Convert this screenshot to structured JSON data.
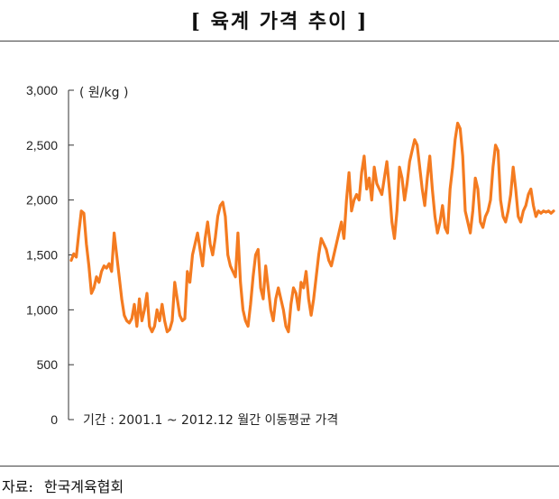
{
  "title": "[ 육계 가격 추이 ]",
  "source": {
    "label": "자료:",
    "value": "한국계육협회"
  },
  "chart_data": {
    "type": "line",
    "title": "[ 육계 가격 추이 ]",
    "unit": "( 원/kg )",
    "note": "기간 : 2001.1 ~ 2012.12 월간 이동평균 가격",
    "xlabel": "",
    "ylabel": "",
    "x_range": [
      "2001-01",
      "2012-12"
    ],
    "ylim": [
      0,
      3000
    ],
    "yticks": [
      0,
      500,
      1000,
      1500,
      2000,
      2500,
      3000
    ],
    "ytick_labels": [
      "0",
      "500",
      "1,000",
      "1,500",
      "2,000",
      "2,500",
      "3,000"
    ],
    "grid": false,
    "line_color": "#F47B20",
    "series": [
      {
        "values": [
          1450,
          1510,
          1480,
          1700,
          1900,
          1880,
          1600,
          1400,
          1150,
          1200,
          1300,
          1250,
          1350,
          1400,
          1380,
          1420,
          1350,
          1700,
          1500,
          1300,
          1100,
          950,
          900,
          880,
          920,
          1050,
          850,
          1100,
          900,
          1000,
          1150,
          850,
          800,
          850,
          1000,
          900,
          1050,
          900,
          800,
          820,
          900,
          1250,
          1100,
          950,
          900,
          920,
          1350,
          1250,
          1500,
          1600,
          1700,
          1550,
          1400,
          1650,
          1800,
          1600,
          1500,
          1650,
          1850,
          1950,
          1980,
          1850,
          1500,
          1400,
          1350,
          1300,
          1700,
          1250,
          1000,
          900,
          850,
          1050,
          1300,
          1500,
          1550,
          1200,
          1100,
          1400,
          1200,
          1000,
          900,
          1100,
          1200,
          1100,
          1000,
          850,
          800,
          1050,
          1200,
          1150,
          1000,
          1250,
          1200,
          1350,
          1100,
          950,
          1100,
          1300,
          1500,
          1650,
          1600,
          1550,
          1450,
          1400,
          1500,
          1600,
          1700,
          1800,
          1650,
          2000,
          2250,
          1900,
          2000,
          2050,
          2000,
          2250,
          2400,
          2100,
          2200,
          2000,
          2300,
          2150,
          2100,
          2050,
          2200,
          2350,
          2100,
          1800,
          1650,
          1900,
          2300,
          2200,
          2000,
          2150,
          2350,
          2450,
          2550,
          2500,
          2300,
          2100,
          1950,
          2200,
          2400,
          2100,
          1850,
          1700,
          1800,
          1950,
          1750,
          1700,
          2100,
          2300,
          2550,
          2700,
          2650,
          2400,
          1900,
          1800,
          1700,
          1900,
          2200,
          2100,
          1800,
          1750,
          1850,
          1900,
          2000,
          2300,
          2500,
          2450,
          2000,
          1850,
          1800,
          1900,
          2050,
          2300,
          2100,
          1850,
          1800,
          1900,
          1950,
          2050,
          2100,
          1950,
          1850,
          1900,
          1880,
          1900,
          1890,
          1900,
          1880,
          1900
        ]
      }
    ]
  }
}
